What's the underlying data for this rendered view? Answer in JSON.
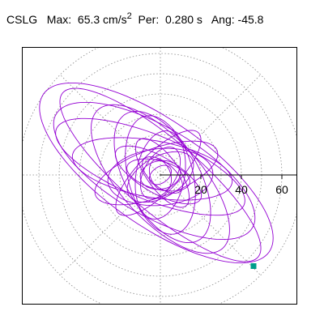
{
  "header": {
    "station": "CSLG",
    "max_label": "Max:",
    "max_value": "65.3 cm/s",
    "max_exp": "2",
    "per_label": "Per:",
    "per_value": "0.280 s",
    "ang_label": "Ang:",
    "ang_value": "-45.8"
  },
  "chart_data": {
    "type": "scatter",
    "title": "CSLG   Max:  65.3 cm/s2  Per:  0.280 s   Ang: -45.8",
    "xlabel": "",
    "ylabel": "",
    "radial_ticks": [
      20,
      40,
      60
    ],
    "ring_spacing": 10,
    "rlim": [
      0,
      70
    ],
    "grid": true,
    "polar_grid_style": "dotted circles and spokes every 45 degrees",
    "orbit_color": "#9400d3",
    "marker_color": "#009d8a",
    "marker_point": {
      "x": 46,
      "y": -45
    },
    "series": [
      {
        "type": "line",
        "ellipses": [
          {
            "a": 68,
            "b": 26,
            "angle_deg": -35,
            "cx": -2,
            "cy": 1
          },
          {
            "a": 63,
            "b": 18,
            "angle_deg": -40,
            "cx": 0,
            "cy": 0
          },
          {
            "a": 56,
            "b": 22,
            "angle_deg": -30,
            "cx": -3,
            "cy": 2
          },
          {
            "a": 50,
            "b": 16,
            "angle_deg": -22,
            "cx": -5,
            "cy": 4
          },
          {
            "a": 46,
            "b": 20,
            "angle_deg": -48,
            "cx": 0,
            "cy": -2
          },
          {
            "a": 40,
            "b": 14,
            "angle_deg": -10,
            "cx": -4,
            "cy": 3
          },
          {
            "a": 36,
            "b": 18,
            "angle_deg": -60,
            "cx": 1,
            "cy": -1
          },
          {
            "a": 32,
            "b": 12,
            "angle_deg": 20,
            "cx": -2,
            "cy": 1
          },
          {
            "a": 30,
            "b": 16,
            "angle_deg": -75,
            "cx": 0,
            "cy": 0
          },
          {
            "a": 28,
            "b": 10,
            "angle_deg": 45,
            "cx": -1,
            "cy": 1
          },
          {
            "a": 26,
            "b": 14,
            "angle_deg": 5,
            "cx": 0,
            "cy": -1
          },
          {
            "a": 24,
            "b": 9,
            "angle_deg": -30,
            "cx": -1,
            "cy": 0
          },
          {
            "a": 22,
            "b": 12,
            "angle_deg": 80,
            "cx": 0,
            "cy": 0
          },
          {
            "a": 20,
            "b": 8,
            "angle_deg": -55,
            "cx": 1,
            "cy": 1
          },
          {
            "a": 18,
            "b": 10,
            "angle_deg": 30,
            "cx": 0,
            "cy": -1
          },
          {
            "a": 16,
            "b": 7,
            "angle_deg": -15,
            "cx": -1,
            "cy": 0
          },
          {
            "a": 14,
            "b": 8,
            "angle_deg": 60,
            "cx": 0,
            "cy": 1
          },
          {
            "a": 12,
            "b": 6,
            "angle_deg": -40,
            "cx": 1,
            "cy": 0
          },
          {
            "a": 10,
            "b": 7,
            "angle_deg": 10,
            "cx": 0,
            "cy": 0
          },
          {
            "a": 8,
            "b": 5,
            "angle_deg": -70,
            "cx": 0,
            "cy": 0
          },
          {
            "a": 6,
            "b": 4,
            "angle_deg": 35,
            "cx": 0,
            "cy": 0
          }
        ]
      }
    ]
  }
}
